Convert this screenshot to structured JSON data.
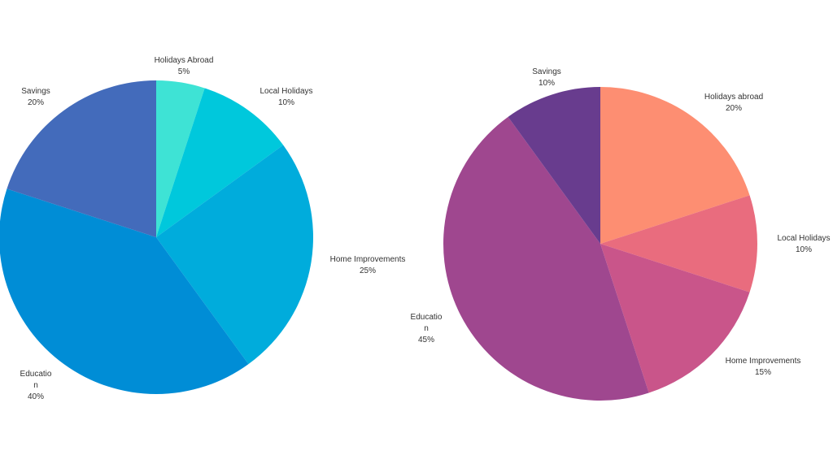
{
  "chart_data": [
    {
      "type": "pie",
      "start_angle": "top",
      "direction": "clockwise",
      "slices": [
        {
          "label": "Holidays Abroad",
          "value": 5,
          "value_label": "5%",
          "color": "#3ee3d5"
        },
        {
          "label": "Local Holidays",
          "value": 10,
          "value_label": "10%",
          "color": "#00c8dc"
        },
        {
          "label": "Home Improvements",
          "value": 25,
          "value_label": "25%",
          "color": "#00acdc"
        },
        {
          "label": "Education",
          "value": 40,
          "value_label": "40%",
          "color": "#008dd6"
        },
        {
          "label": "Savings",
          "value": 20,
          "value_label": "20%",
          "color": "#436bbb"
        }
      ]
    },
    {
      "type": "pie",
      "start_angle": "top",
      "direction": "clockwise",
      "slices": [
        {
          "label": "Holidays abroad",
          "value": 20,
          "value_label": "20%",
          "color": "#fd8e72"
        },
        {
          "label": "Local Holidays",
          "value": 10,
          "value_label": "10%",
          "color": "#e96c7e"
        },
        {
          "label": "Home Improvements",
          "value": 15,
          "value_label": "15%",
          "color": "#c9558a"
        },
        {
          "label": "Education",
          "value": 45,
          "value_label": "45%",
          "color": "#9f478f"
        },
        {
          "label": "Savings",
          "value": 10,
          "value_label": "10%",
          "color": "#683c8e"
        }
      ]
    }
  ]
}
